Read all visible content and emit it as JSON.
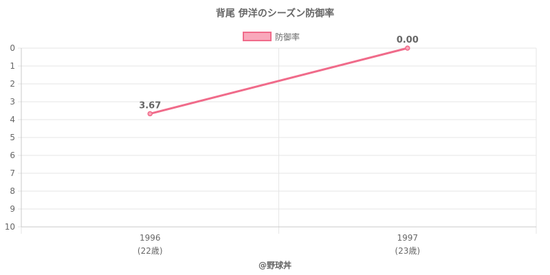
{
  "chart_data": {
    "type": "line",
    "title": "背尾 伊洋のシーズン防御率",
    "categories": [
      "1996",
      "1997"
    ],
    "category_sublabels": [
      "(22歳)",
      "(23歳)"
    ],
    "series": [
      {
        "name": "防御率",
        "values": [
          3.67,
          0.0
        ],
        "labels": [
          "3.67",
          "0.00"
        ]
      }
    ],
    "y_ticks": [
      "0",
      "1",
      "2",
      "3",
      "4",
      "5",
      "6",
      "7",
      "8",
      "9",
      "10"
    ],
    "ylim": [
      0,
      10
    ],
    "y_reversed": true,
    "grid": true,
    "legend_position": "top-center",
    "colors": {
      "line": "#f06b8a",
      "fill": "#f9a8bb",
      "grid": "#e6e6e6",
      "text": "#666666"
    }
  },
  "footer": "@野球丼"
}
